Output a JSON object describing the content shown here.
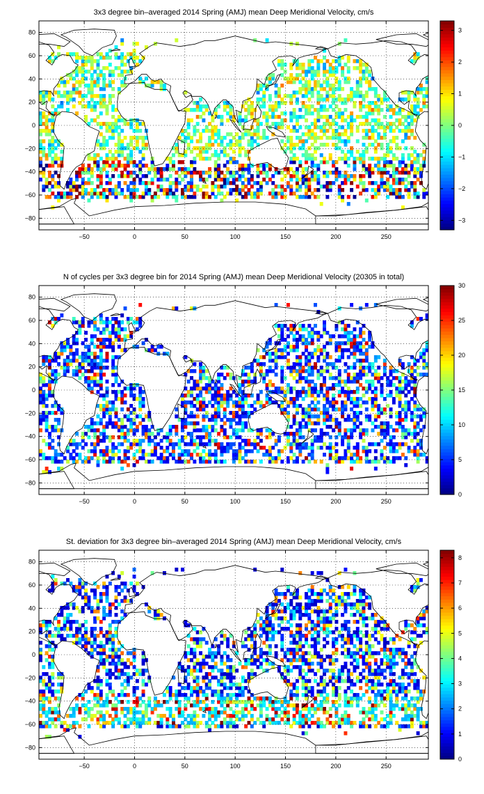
{
  "colormap": "jet",
  "chart_data": [
    {
      "type": "heatmap",
      "title": "3x3 degree bin–averaged 2014 Spring (AMJ) mean Deep Meridional Velocity, cm/s",
      "xlim": [
        -95,
        292
      ],
      "ylim": [
        -90,
        90
      ],
      "bin_size_deg": 3,
      "xticks": [
        -50,
        0,
        50,
        100,
        150,
        200,
        250
      ],
      "yticks": [
        -80,
        -60,
        -40,
        -20,
        0,
        20,
        40,
        60,
        80
      ],
      "grid": "dotted",
      "colorbar": {
        "min": -3.3,
        "max": 3.3,
        "ticks": [
          -3,
          -2,
          -1,
          0,
          1,
          2,
          3
        ]
      },
      "seed": 7,
      "cmode": "velocity"
    },
    {
      "type": "heatmap",
      "title": "N of cycles per 3x3 degree bin for 2014 Spring (AMJ) mean Deep Meridional Velocity (20305 in total)",
      "xlim": [
        -95,
        292
      ],
      "ylim": [
        -90,
        90
      ],
      "bin_size_deg": 3,
      "xticks": [
        -50,
        0,
        50,
        100,
        150,
        200,
        250
      ],
      "yticks": [
        -80,
        -60,
        -40,
        -20,
        0,
        20,
        40,
        60,
        80
      ],
      "grid": "dotted",
      "colorbar": {
        "min": 0,
        "max": 30,
        "ticks": [
          0,
          5,
          10,
          15,
          20,
          25,
          30
        ]
      },
      "seed": 19,
      "cmode": "count"
    },
    {
      "type": "heatmap",
      "title": "St. deviation for 3x3 degree bin–averaged 2014 Spring (AMJ) mean Deep Meridional Velocity, cm/s",
      "xlim": [
        -95,
        292
      ],
      "ylim": [
        -90,
        90
      ],
      "bin_size_deg": 3,
      "xticks": [
        -50,
        0,
        50,
        100,
        150,
        200,
        250
      ],
      "yticks": [
        -80,
        -60,
        -40,
        -20,
        0,
        20,
        40,
        60,
        80
      ],
      "grid": "dotted",
      "colorbar": {
        "min": 0,
        "max": 8.3,
        "ticks": [
          0,
          1,
          2,
          3,
          4,
          5,
          6,
          7,
          8
        ]
      },
      "seed": 31,
      "cmode": "stdev"
    }
  ]
}
